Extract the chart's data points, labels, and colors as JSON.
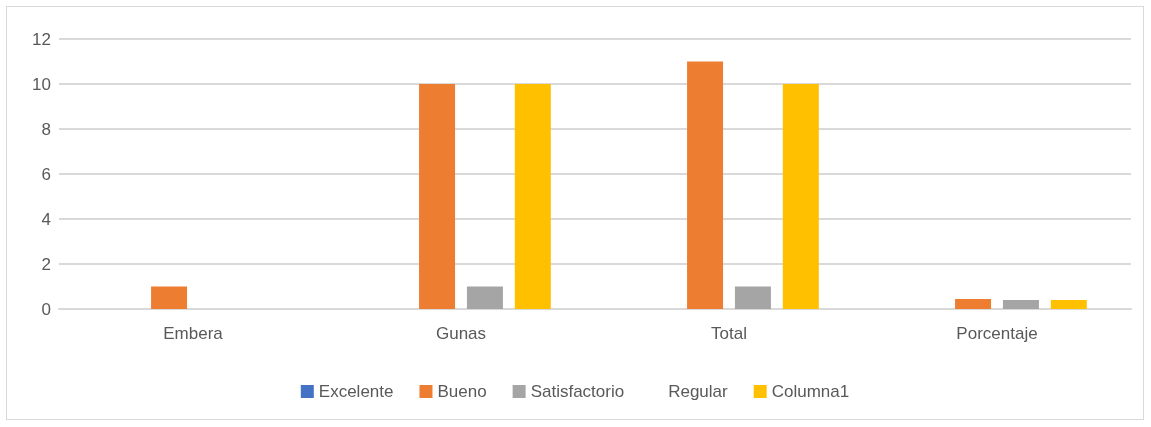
{
  "chart_data": {
    "type": "bar",
    "categories": [
      "Embera",
      "Gunas",
      "Total",
      "Porcentaje"
    ],
    "series": [
      {
        "name": "Excelente",
        "color": "#4472c4",
        "values": [
          0,
          0,
          0,
          0
        ]
      },
      {
        "name": "Bueno",
        "color": "#ed7d31",
        "values": [
          1,
          10,
          11,
          0.45
        ]
      },
      {
        "name": "Satisfactorio",
        "color": "#a5a5a5",
        "values": [
          0,
          1,
          1,
          0.4
        ]
      },
      {
        "name": "Regular",
        "values": [
          null,
          null,
          null,
          null
        ]
      },
      {
        "name": "Columna1",
        "color": "#ffc000",
        "values": [
          0,
          10,
          10,
          0.4
        ]
      }
    ],
    "ylim": [
      0,
      12
    ],
    "yticks": [
      0,
      2,
      4,
      6,
      8,
      10,
      12
    ],
    "grid": "y",
    "legend": "bottom"
  }
}
